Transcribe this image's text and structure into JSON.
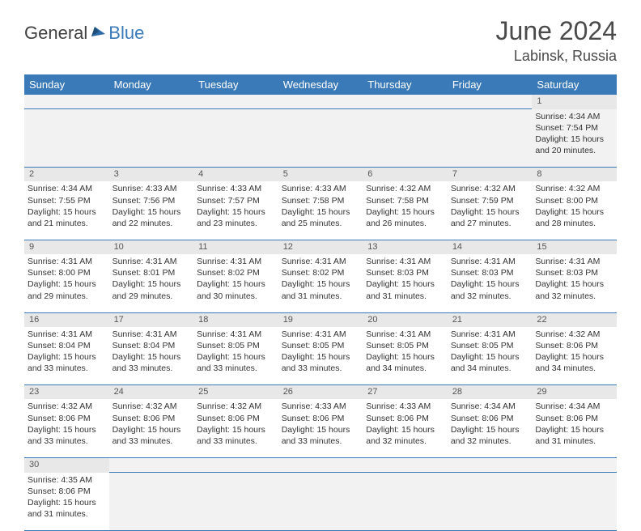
{
  "logo": {
    "text1": "General",
    "text2": "Blue"
  },
  "title": "June 2024",
  "location": "Labinsk, Russia",
  "colors": {
    "header_bg": "#3b7ab8",
    "header_text": "#ffffff",
    "daynum_bg": "#e8e8e8",
    "cell_border": "#3b7ab8",
    "page_bg": "#ffffff",
    "empty_bg": "#f2f2f2"
  },
  "weekdays": [
    "Sunday",
    "Monday",
    "Tuesday",
    "Wednesday",
    "Thursday",
    "Friday",
    "Saturday"
  ],
  "weeks": [
    [
      null,
      null,
      null,
      null,
      null,
      null,
      {
        "n": "1",
        "sr": "Sunrise: 4:34 AM",
        "ss": "Sunset: 7:54 PM",
        "d1": "Daylight: 15 hours",
        "d2": "and 20 minutes."
      }
    ],
    [
      {
        "n": "2",
        "sr": "Sunrise: 4:34 AM",
        "ss": "Sunset: 7:55 PM",
        "d1": "Daylight: 15 hours",
        "d2": "and 21 minutes."
      },
      {
        "n": "3",
        "sr": "Sunrise: 4:33 AM",
        "ss": "Sunset: 7:56 PM",
        "d1": "Daylight: 15 hours",
        "d2": "and 22 minutes."
      },
      {
        "n": "4",
        "sr": "Sunrise: 4:33 AM",
        "ss": "Sunset: 7:57 PM",
        "d1": "Daylight: 15 hours",
        "d2": "and 23 minutes."
      },
      {
        "n": "5",
        "sr": "Sunrise: 4:33 AM",
        "ss": "Sunset: 7:58 PM",
        "d1": "Daylight: 15 hours",
        "d2": "and 25 minutes."
      },
      {
        "n": "6",
        "sr": "Sunrise: 4:32 AM",
        "ss": "Sunset: 7:58 PM",
        "d1": "Daylight: 15 hours",
        "d2": "and 26 minutes."
      },
      {
        "n": "7",
        "sr": "Sunrise: 4:32 AM",
        "ss": "Sunset: 7:59 PM",
        "d1": "Daylight: 15 hours",
        "d2": "and 27 minutes."
      },
      {
        "n": "8",
        "sr": "Sunrise: 4:32 AM",
        "ss": "Sunset: 8:00 PM",
        "d1": "Daylight: 15 hours",
        "d2": "and 28 minutes."
      }
    ],
    [
      {
        "n": "9",
        "sr": "Sunrise: 4:31 AM",
        "ss": "Sunset: 8:00 PM",
        "d1": "Daylight: 15 hours",
        "d2": "and 29 minutes."
      },
      {
        "n": "10",
        "sr": "Sunrise: 4:31 AM",
        "ss": "Sunset: 8:01 PM",
        "d1": "Daylight: 15 hours",
        "d2": "and 29 minutes."
      },
      {
        "n": "11",
        "sr": "Sunrise: 4:31 AM",
        "ss": "Sunset: 8:02 PM",
        "d1": "Daylight: 15 hours",
        "d2": "and 30 minutes."
      },
      {
        "n": "12",
        "sr": "Sunrise: 4:31 AM",
        "ss": "Sunset: 8:02 PM",
        "d1": "Daylight: 15 hours",
        "d2": "and 31 minutes."
      },
      {
        "n": "13",
        "sr": "Sunrise: 4:31 AM",
        "ss": "Sunset: 8:03 PM",
        "d1": "Daylight: 15 hours",
        "d2": "and 31 minutes."
      },
      {
        "n": "14",
        "sr": "Sunrise: 4:31 AM",
        "ss": "Sunset: 8:03 PM",
        "d1": "Daylight: 15 hours",
        "d2": "and 32 minutes."
      },
      {
        "n": "15",
        "sr": "Sunrise: 4:31 AM",
        "ss": "Sunset: 8:03 PM",
        "d1": "Daylight: 15 hours",
        "d2": "and 32 minutes."
      }
    ],
    [
      {
        "n": "16",
        "sr": "Sunrise: 4:31 AM",
        "ss": "Sunset: 8:04 PM",
        "d1": "Daylight: 15 hours",
        "d2": "and 33 minutes."
      },
      {
        "n": "17",
        "sr": "Sunrise: 4:31 AM",
        "ss": "Sunset: 8:04 PM",
        "d1": "Daylight: 15 hours",
        "d2": "and 33 minutes."
      },
      {
        "n": "18",
        "sr": "Sunrise: 4:31 AM",
        "ss": "Sunset: 8:05 PM",
        "d1": "Daylight: 15 hours",
        "d2": "and 33 minutes."
      },
      {
        "n": "19",
        "sr": "Sunrise: 4:31 AM",
        "ss": "Sunset: 8:05 PM",
        "d1": "Daylight: 15 hours",
        "d2": "and 33 minutes."
      },
      {
        "n": "20",
        "sr": "Sunrise: 4:31 AM",
        "ss": "Sunset: 8:05 PM",
        "d1": "Daylight: 15 hours",
        "d2": "and 34 minutes."
      },
      {
        "n": "21",
        "sr": "Sunrise: 4:31 AM",
        "ss": "Sunset: 8:05 PM",
        "d1": "Daylight: 15 hours",
        "d2": "and 34 minutes."
      },
      {
        "n": "22",
        "sr": "Sunrise: 4:32 AM",
        "ss": "Sunset: 8:06 PM",
        "d1": "Daylight: 15 hours",
        "d2": "and 34 minutes."
      }
    ],
    [
      {
        "n": "23",
        "sr": "Sunrise: 4:32 AM",
        "ss": "Sunset: 8:06 PM",
        "d1": "Daylight: 15 hours",
        "d2": "and 33 minutes."
      },
      {
        "n": "24",
        "sr": "Sunrise: 4:32 AM",
        "ss": "Sunset: 8:06 PM",
        "d1": "Daylight: 15 hours",
        "d2": "and 33 minutes."
      },
      {
        "n": "25",
        "sr": "Sunrise: 4:32 AM",
        "ss": "Sunset: 8:06 PM",
        "d1": "Daylight: 15 hours",
        "d2": "and 33 minutes."
      },
      {
        "n": "26",
        "sr": "Sunrise: 4:33 AM",
        "ss": "Sunset: 8:06 PM",
        "d1": "Daylight: 15 hours",
        "d2": "and 33 minutes."
      },
      {
        "n": "27",
        "sr": "Sunrise: 4:33 AM",
        "ss": "Sunset: 8:06 PM",
        "d1": "Daylight: 15 hours",
        "d2": "and 32 minutes."
      },
      {
        "n": "28",
        "sr": "Sunrise: 4:34 AM",
        "ss": "Sunset: 8:06 PM",
        "d1": "Daylight: 15 hours",
        "d2": "and 32 minutes."
      },
      {
        "n": "29",
        "sr": "Sunrise: 4:34 AM",
        "ss": "Sunset: 8:06 PM",
        "d1": "Daylight: 15 hours",
        "d2": "and 31 minutes."
      }
    ],
    [
      {
        "n": "30",
        "sr": "Sunrise: 4:35 AM",
        "ss": "Sunset: 8:06 PM",
        "d1": "Daylight: 15 hours",
        "d2": "and 31 minutes."
      },
      null,
      null,
      null,
      null,
      null,
      null
    ]
  ]
}
